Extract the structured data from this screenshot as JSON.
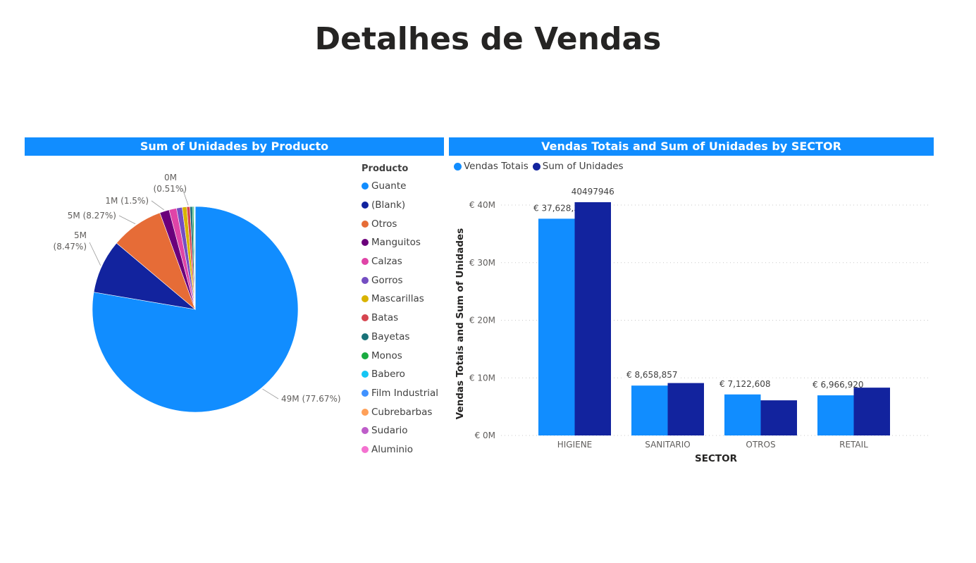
{
  "page": {
    "title": "Detalhes de Vendas"
  },
  "chart_data": [
    {
      "type": "pie",
      "title": "Sum of Unidades by Producto",
      "legend_title": "Producto",
      "legend_position": "right",
      "slices": [
        {
          "label": "Guante",
          "value": 49,
          "percent": 77.67,
          "color": "#118dff",
          "data_label": "49M (77.67%)"
        },
        {
          "label": "(Blank)",
          "value": 5.34,
          "percent": 8.47,
          "color": "#12239e",
          "data_label": "5M (8.47%)"
        },
        {
          "label": "Otros",
          "value": 5.22,
          "percent": 8.27,
          "color": "#e66c37",
          "data_label": "5M (8.27%)"
        },
        {
          "label": "Manguitos",
          "value": 0.95,
          "percent": 1.5,
          "color": "#6b007b",
          "data_label": "1M (1.5%)"
        },
        {
          "label": "Calzas",
          "value": 0.74,
          "percent": 1.17,
          "color": "#e044a7",
          "data_label": ""
        },
        {
          "label": "Gorros",
          "value": 0.57,
          "percent": 0.9,
          "color": "#744ec2",
          "data_label": ""
        },
        {
          "label": "Mascarillas",
          "value": 0.44,
          "percent": 0.7,
          "color": "#d9b300",
          "data_label": ""
        },
        {
          "label": "Batas",
          "value": 0.32,
          "percent": 0.51,
          "color": "#d64550",
          "data_label": "0M (0.51%)"
        },
        {
          "label": "Bayetas",
          "value": 0.24,
          "percent": 0.38,
          "color": "#197278",
          "data_label": ""
        },
        {
          "label": "Monos",
          "value": 0.12,
          "percent": 0.2,
          "color": "#1aab40",
          "data_label": ""
        },
        {
          "label": "Babero",
          "value": 0.07,
          "percent": 0.11,
          "color": "#15c6f4",
          "data_label": ""
        },
        {
          "label": "Film Industrial",
          "value": 0.04,
          "percent": 0.06,
          "color": "#4092ff",
          "data_label": ""
        },
        {
          "label": "Cubrebarbas",
          "value": 0.02,
          "percent": 0.03,
          "color": "#ffa058",
          "data_label": ""
        },
        {
          "label": "Sudario",
          "value": 0.01,
          "percent": 0.02,
          "color": "#be5dc9",
          "data_label": ""
        },
        {
          "label": "Aluminio",
          "value": 0.01,
          "percent": 0.01,
          "color": "#f472d0",
          "data_label": ""
        }
      ]
    },
    {
      "type": "bar",
      "title": "Vendas Totais and Sum of Unidades by SECTOR",
      "xlabel": "SECTOR",
      "ylabel": "Vendas Totais and Sum of Unidades",
      "ylim": [
        0,
        40000000
      ],
      "yticks": [
        {
          "value": 0,
          "label": "€ 0M"
        },
        {
          "value": 10000000,
          "label": "€ 10M"
        },
        {
          "value": 20000000,
          "label": "€ 20M"
        },
        {
          "value": 30000000,
          "label": "€ 30M"
        },
        {
          "value": 40000000,
          "label": "€ 40M"
        }
      ],
      "grid": true,
      "legend_position": "top-left",
      "categories": [
        "HIGIENE",
        "SANITARIO",
        "OTROS",
        "RETAIL"
      ],
      "series": [
        {
          "name": "Vendas Totais",
          "color": "#118dff",
          "values": [
            37628312,
            8658857,
            7122608,
            6966920
          ],
          "labels": [
            "€ 37,628,312",
            "€ 8,658,857",
            "€ 7,122,608",
            "€ 6,966,920"
          ]
        },
        {
          "name": "Sum of Unidades",
          "color": "#12239e",
          "values": [
            40497946,
            9100000,
            6100000,
            8300000
          ],
          "labels": [
            "40497946",
            "",
            "",
            ""
          ]
        }
      ]
    }
  ]
}
